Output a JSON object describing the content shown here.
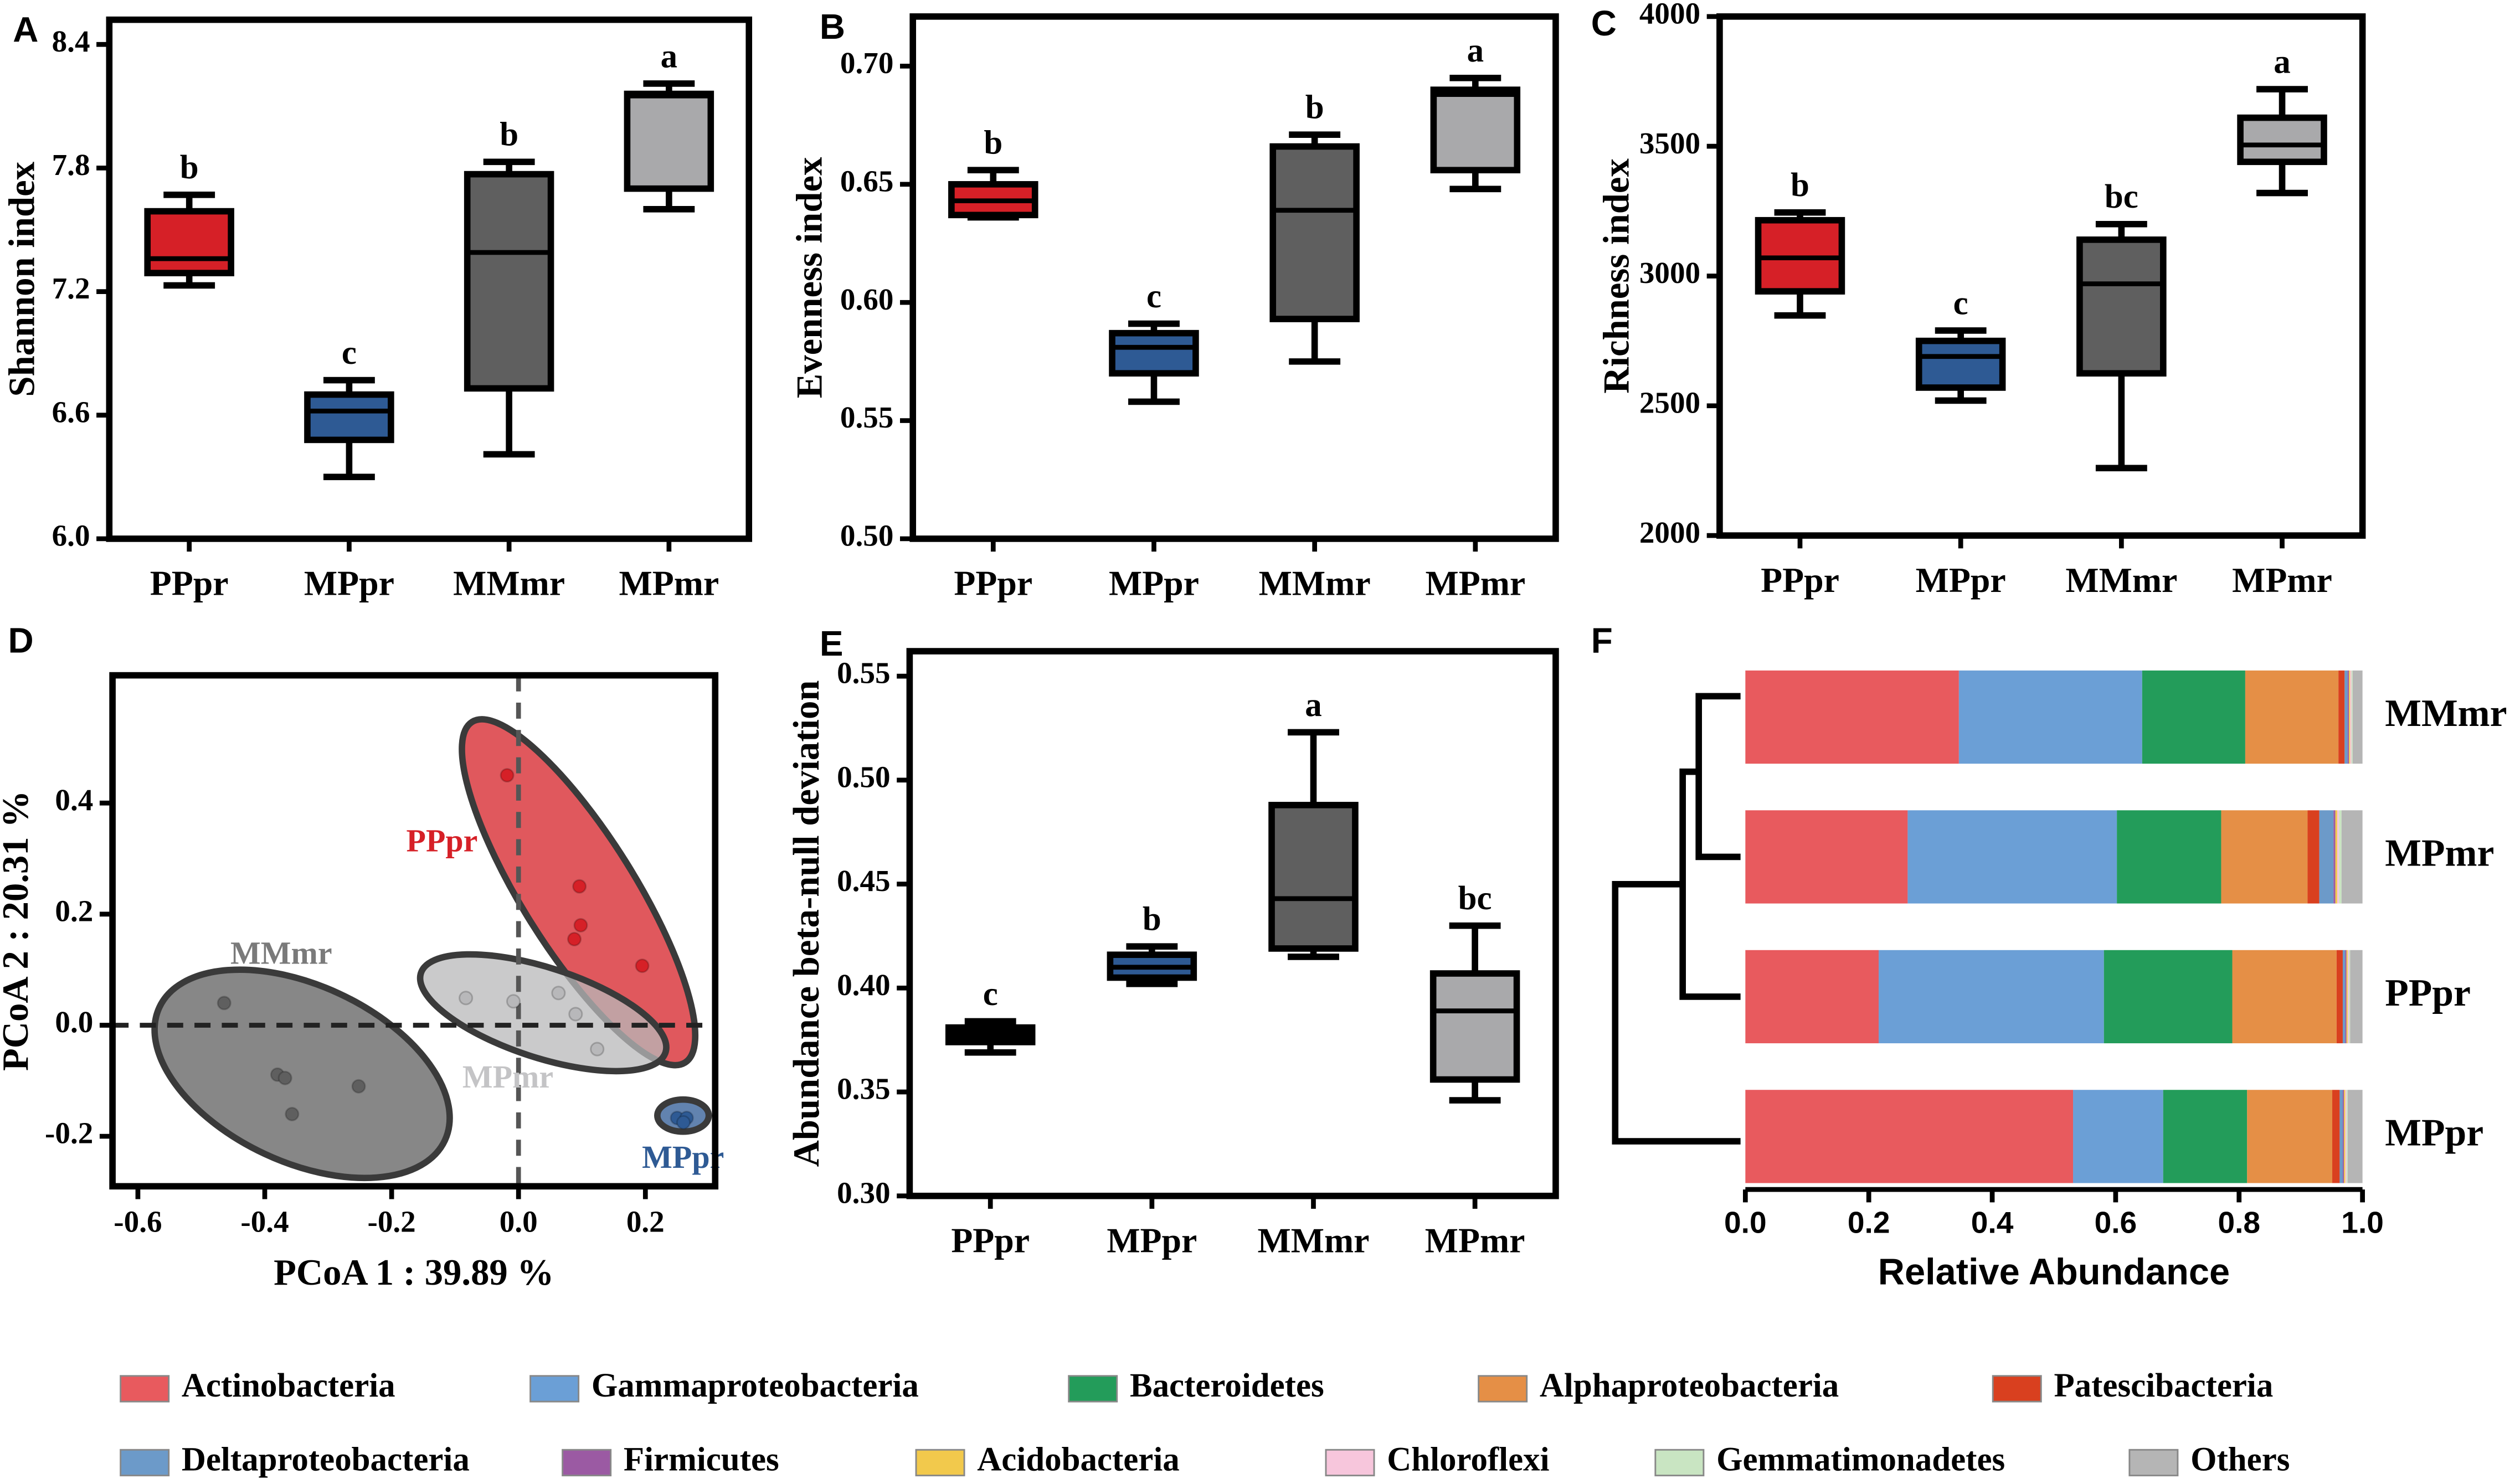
{
  "chart_data": [
    {
      "type": "box",
      "label": "A",
      "ylabel": "Shannon index",
      "categories": [
        "PPpr",
        "MPpr",
        "MMmr",
        "MPmr"
      ],
      "ylim": [
        6.0,
        8.52
      ],
      "yticks": [
        {
          "value": 6,
          "label": "6.0"
        },
        6.6,
        7.2,
        7.8,
        8.4
      ],
      "colors": [
        "#d62027",
        "#2e5a94",
        "#5f5f5f",
        "#a9a9ab"
      ],
      "letters": [
        "b",
        "c",
        "b",
        "a"
      ],
      "stats": [
        {
          "min": 7.23,
          "q1": 7.29,
          "median": 7.36,
          "q3": 7.59,
          "max": 7.67
        },
        {
          "min": 6.3,
          "q1": 6.48,
          "median": 6.62,
          "q3": 6.7,
          "max": 6.77
        },
        {
          "min": 6.41,
          "q1": 6.73,
          "median": 7.39,
          "q3": 7.77,
          "max": 7.83
        },
        {
          "min": 7.6,
          "q1": 7.7,
          "median": 8.15,
          "q3": 8.16,
          "max": 8.21
        }
      ]
    },
    {
      "type": "box",
      "label": "B",
      "ylabel": "Evenness index",
      "categories": [
        "PPpr",
        "MPpr",
        "MMmr",
        "MPmr"
      ],
      "ylim": [
        0.5,
        0.721
      ],
      "yticks": [
        {
          "value": 0.5,
          "label": "0.50"
        },
        0.55,
        {
          "value": 0.6,
          "label": "0.60"
        },
        0.65,
        {
          "value": 0.7,
          "label": "0.70"
        }
      ],
      "colors": [
        "#d62027",
        "#2e5a94",
        "#5f5f5f",
        "#a9a9ab"
      ],
      "letters": [
        "b",
        "c",
        "b",
        "a"
      ],
      "stats": [
        {
          "min": 0.636,
          "q1": 0.637,
          "median": 0.643,
          "q3": 0.65,
          "max": 0.656
        },
        {
          "min": 0.558,
          "q1": 0.57,
          "median": 0.581,
          "q3": 0.587,
          "max": 0.591
        },
        {
          "min": 0.575,
          "q1": 0.593,
          "median": 0.639,
          "q3": 0.666,
          "max": 0.671
        },
        {
          "min": 0.648,
          "q1": 0.656,
          "median": 0.688,
          "q3": 0.69,
          "max": 0.695
        }
      ]
    },
    {
      "type": "box",
      "label": "C",
      "ylabel": "Richness index",
      "categories": [
        "PPpr",
        "MPpr",
        "MMmr",
        "MPmr"
      ],
      "ylim": [
        2000,
        4000
      ],
      "yticks": [
        2000,
        2500,
        3000,
        3500,
        4000
      ],
      "colors": [
        "#d62027",
        "#2e5a94",
        "#5f5f5f",
        "#a9a9ab"
      ],
      "letters": [
        "b",
        "c",
        "bc",
        "a"
      ],
      "stats": [
        {
          "min": 2848,
          "q1": 2941,
          "median": 3070,
          "q3": 3215,
          "max": 3245
        },
        {
          "min": 2520,
          "q1": 2570,
          "median": 2690,
          "q3": 2750,
          "max": 2790
        },
        {
          "min": 2260,
          "q1": 2625,
          "median": 2970,
          "q3": 3140,
          "max": 3200
        },
        {
          "min": 3320,
          "q1": 3440,
          "median": 3505,
          "q3": 3610,
          "max": 3720
        }
      ]
    },
    {
      "type": "scatter",
      "label": "D",
      "xlabel": "PCoA 1 : 39.89 %",
      "ylabel": "PCoA 2 : 20.31 %",
      "xlim": [
        -0.64,
        0.31
      ],
      "ylim": [
        -0.29,
        0.63
      ],
      "xticks": [
        -0.6,
        -0.4,
        -0.2,
        {
          "value": 0,
          "label": "0.0"
        },
        0.2
      ],
      "yticks": [
        -0.2,
        {
          "value": 0,
          "label": "0.0"
        },
        0.2,
        0.4
      ],
      "series": [
        {
          "name": "PPpr",
          "color": "#d62027",
          "x": [
            -0.018,
            0.096,
            0.098,
            0.088,
            0.195
          ],
          "y": [
            0.45,
            0.25,
            0.18,
            0.155,
            0.107
          ]
        },
        {
          "name": "MMmr",
          "color": "#5f5f5f",
          "x": [
            -0.464,
            -0.38,
            -0.368,
            -0.357,
            -0.252
          ],
          "y": [
            0.04,
            -0.089,
            -0.095,
            -0.16,
            -0.11
          ]
        },
        {
          "name": "MPmr",
          "color": "#b8b8ba",
          "x": [
            -0.083,
            -0.008,
            0.063,
            0.124,
            0.09
          ],
          "y": [
            0.049,
            0.043,
            0.058,
            -0.043,
            0.02
          ]
        },
        {
          "name": "MPpr",
          "color": "#2e5a94",
          "x": [
            0.25,
            0.265,
            0.26
          ],
          "y": [
            -0.167,
            -0.167,
            -0.175
          ]
        }
      ]
    },
    {
      "type": "box",
      "label": "E",
      "ylabel": "Abundance beta-null deviation",
      "categories": [
        "PPpr",
        "MPpr",
        "MMmr",
        "MPmr"
      ],
      "ylim": [
        0.3,
        0.562
      ],
      "yticks": [
        {
          "value": 0.3,
          "label": "0.30"
        },
        0.35,
        {
          "value": 0.4,
          "label": "0.40"
        },
        0.45,
        {
          "value": 0.5,
          "label": "0.50"
        },
        0.55
      ],
      "colors": [
        "#000000",
        "#2e5a94",
        "#5f5f5f",
        "#a9a9ab"
      ],
      "letters": [
        "c",
        "b",
        "a",
        "bc"
      ],
      "stats": [
        {
          "min": 0.369,
          "q1": 0.374,
          "median": 0.378,
          "q3": 0.381,
          "max": 0.384
        },
        {
          "min": 0.402,
          "q1": 0.405,
          "median": 0.41,
          "q3": 0.416,
          "max": 0.42
        },
        {
          "min": 0.415,
          "q1": 0.419,
          "median": 0.443,
          "q3": 0.488,
          "max": 0.523
        },
        {
          "min": 0.346,
          "q1": 0.356,
          "median": 0.389,
          "q3": 0.407,
          "max": 0.43
        }
      ]
    },
    {
      "type": "hbar_stacked",
      "label": "F",
      "xlabel": "Relative Abundance",
      "categories": [
        "MMmr",
        "MPmr",
        "PPpr",
        "MPpr"
      ],
      "xlim": [
        0,
        1
      ],
      "xticks": [
        {
          "value": 0,
          "label": "0.0"
        },
        0.2,
        0.4,
        0.6,
        0.8,
        {
          "value": 1,
          "label": "1.0"
        }
      ],
      "series": [
        {
          "name": "Actinobacteria",
          "color": "#e85a5e",
          "values": [
            0.346,
            0.263,
            0.216,
            0.531
          ]
        },
        {
          "name": "Gammaproteobacteria",
          "color": "#6b9fd6",
          "values": [
            0.297,
            0.339,
            0.365,
            0.146
          ]
        },
        {
          "name": "Bacteroidetes",
          "color": "#239c5a",
          "values": [
            0.167,
            0.169,
            0.208,
            0.136
          ]
        },
        {
          "name": "Alphaproteobacteria",
          "color": "#e58f46",
          "values": [
            0.151,
            0.14,
            0.169,
            0.138
          ]
        },
        {
          "name": "Patescibacteria",
          "color": "#d9401f",
          "values": [
            0.01,
            0.019,
            0.01,
            0.012
          ]
        },
        {
          "name": "Deltaproteobacteria",
          "color": "#6c9ac9",
          "values": [
            0.005,
            0.023,
            0.004,
            0.005
          ]
        },
        {
          "name": "Firmicutes",
          "color": "#9b5aa3",
          "values": [
            0.002,
            0.003,
            0.002,
            0.002
          ]
        },
        {
          "name": "Acidobacteria",
          "color": "#f2c94c",
          "values": [
            0.002,
            0.003,
            0.002,
            0.002
          ]
        },
        {
          "name": "Chloroflexi",
          "color": "#f7c6dc",
          "values": [
            0.002,
            0.003,
            0.002,
            0.002
          ]
        },
        {
          "name": "Gemmatimonadetes",
          "color": "#c9e5c2",
          "values": [
            0.002,
            0.004,
            0.002,
            0.002
          ]
        },
        {
          "name": "Others",
          "color": "#b5b5b5",
          "values": [
            0.016,
            0.034,
            0.02,
            0.024
          ]
        }
      ]
    }
  ]
}
